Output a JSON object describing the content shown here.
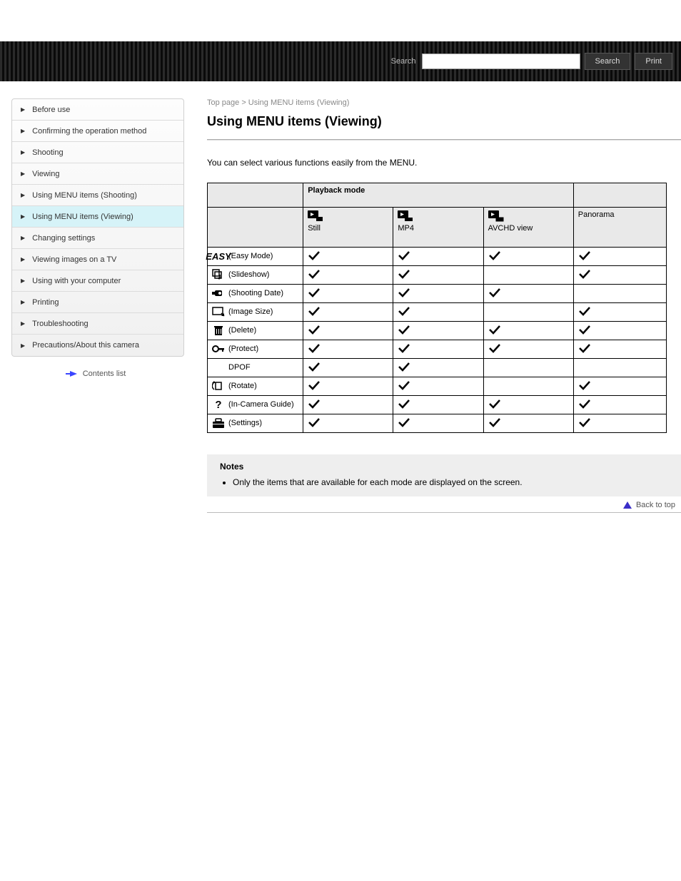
{
  "topbar": {
    "search_label": "Search",
    "search_btn": "Search",
    "print_btn": "Print"
  },
  "sidebar": {
    "items": [
      "Before use",
      "Confirming the operation method",
      "Shooting",
      "Viewing",
      "Using MENU items (Shooting)",
      "Using MENU items (Viewing)",
      "Changing settings",
      "Viewing images on a TV",
      "Using with your computer",
      "Printing",
      "Troubleshooting",
      "Precautions/About this camera"
    ],
    "active_index": 5,
    "read_first": "Contents list"
  },
  "breadcrumb": "Top page > Using MENU items (Viewing)",
  "title": "Using MENU items (Viewing)",
  "intro": "You can select various functions easily from the MENU.",
  "table": {
    "top_headers": [
      "",
      "Playback mode",
      ""
    ],
    "sub_headers": [
      "",
      "Still",
      "MP4",
      "AVCHD view",
      "Panorama"
    ],
    "rows": [
      {
        "icon": "easy",
        "label": "(Easy Mode)",
        "checks": [
          true,
          true,
          true,
          true
        ]
      },
      {
        "icon": "music",
        "label": "(Slideshow)",
        "checks": [
          true,
          true,
          false,
          true
        ]
      },
      {
        "icon": "camera",
        "label": "(Shooting Date)",
        "checks": [
          true,
          true,
          true,
          false
        ]
      },
      {
        "icon": "resize",
        "label": "(Image Size)",
        "checks": [
          true,
          true,
          false,
          true
        ]
      },
      {
        "icon": "trash",
        "label": "(Delete)",
        "checks": [
          true,
          true,
          true,
          true
        ]
      },
      {
        "icon": "key",
        "label": "(Protect)",
        "checks": [
          true,
          true,
          true,
          true
        ]
      },
      {
        "icon": "dpof",
        "label": "DPOF",
        "checks": [
          true,
          true,
          false,
          false
        ]
      },
      {
        "icon": "rotate",
        "label": "(Rotate)",
        "checks": [
          true,
          true,
          false,
          true
        ]
      },
      {
        "icon": "help",
        "label": "(In-Camera Guide)",
        "checks": [
          true,
          true,
          true,
          true
        ]
      },
      {
        "icon": "toolbox",
        "label": "(Settings)",
        "checks": [
          true,
          true,
          true,
          true
        ]
      }
    ]
  },
  "notes": {
    "heading": "Notes",
    "items": [
      "Only the items that are available for each mode are displayed on the screen."
    ]
  },
  "backtotop": "Back to top"
}
